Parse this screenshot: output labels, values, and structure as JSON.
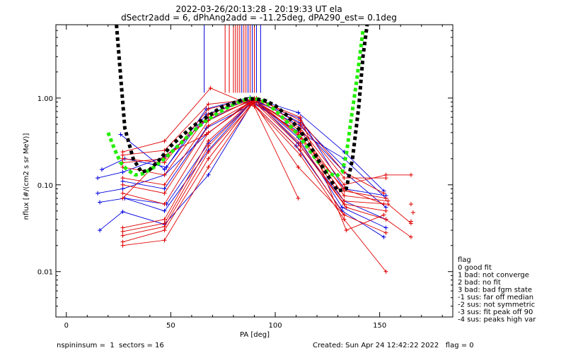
{
  "chart_data": {
    "type": "line",
    "title": "2022-03-26/20:13:28 - 20:19:33 UT ela",
    "subtitle": "dSectr2add = 6, dPhAng2add = -11.25deg, dPA290_est=   0.1deg",
    "xlabel": "PA [deg]",
    "ylabel": "nflux [#/(cm2 s sr MeV)]",
    "xlim": [
      -5,
      185
    ],
    "ylim": [
      0.003,
      7
    ],
    "yscale": "log",
    "xticks": [
      0,
      50,
      100,
      150
    ],
    "yticks": [
      0.01,
      0.1,
      1.0
    ],
    "ytick_labels": [
      "0.01",
      "0.10",
      "1.00"
    ],
    "grid": false,
    "colors": {
      "red": "#e00000",
      "blue": "#0000e0",
      "fit_black": "#000000",
      "fit_green": "#22ee00"
    },
    "blue_vlines_x": [
      66,
      84,
      87,
      89,
      91,
      93
    ],
    "red_vlines_x": [
      76,
      78,
      80,
      81,
      82,
      83,
      85,
      86,
      88,
      90
    ],
    "series": [
      {
        "color": "blue",
        "x": [
          15,
          27,
          47,
          67,
          88,
          112,
          133,
          153
        ],
        "y": [
          0.12,
          0.14,
          0.21,
          0.55,
          0.93,
          0.48,
          0.14,
          0.055
        ]
      },
      {
        "color": "blue",
        "x": [
          15,
          27,
          47,
          67,
          88,
          112,
          133,
          153
        ],
        "y": [
          0.08,
          0.09,
          0.13,
          0.38,
          0.92,
          0.4,
          0.2,
          0.07
        ]
      },
      {
        "color": "blue",
        "x": [
          16,
          28,
          47,
          68,
          90,
          111,
          133,
          153
        ],
        "y": [
          0.063,
          0.07,
          0.05,
          0.25,
          0.97,
          0.3,
          0.065,
          0.04
        ]
      },
      {
        "color": "blue",
        "x": [
          16,
          27,
          47,
          68,
          89,
          110,
          132,
          152
        ],
        "y": [
          0.03,
          0.049,
          0.035,
          0.13,
          0.88,
          0.28,
          0.05,
          0.025
        ]
      },
      {
        "color": "blue",
        "x": [
          17,
          28,
          48,
          67,
          88,
          111,
          133,
          152
        ],
        "y": [
          0.15,
          0.2,
          0.16,
          0.75,
          1.02,
          0.68,
          0.24,
          0.085
        ]
      },
      {
        "color": "blue",
        "x": [
          26,
          47,
          67,
          89,
          112,
          133
        ],
        "y": [
          0.38,
          0.15,
          0.65,
          0.98,
          0.52,
          0.16
        ]
      },
      {
        "color": "blue",
        "x": [
          27,
          47,
          67,
          91,
          112,
          133,
          153
        ],
        "y": [
          0.11,
          0.09,
          0.45,
          0.9,
          0.58,
          0.09,
          0.075
        ]
      },
      {
        "color": "blue",
        "x": [
          28,
          48,
          68,
          90,
          111,
          132,
          153
        ],
        "y": [
          0.07,
          0.06,
          0.3,
          0.95,
          0.35,
          0.055,
          0.032
        ]
      },
      {
        "color": "red",
        "x": [
          27,
          47,
          68,
          89,
          112,
          133,
          153
        ],
        "y": [
          0.02,
          0.023,
          0.16,
          0.86,
          0.22,
          0.04,
          0.01
        ]
      },
      {
        "color": "red",
        "x": [
          27,
          47,
          68,
          89,
          112,
          133,
          153
        ],
        "y": [
          0.022,
          0.03,
          0.2,
          0.88,
          0.25,
          0.045,
          0.028
        ]
      },
      {
        "color": "red",
        "x": [
          27,
          47,
          68,
          90,
          112,
          134,
          153,
          165
        ],
        "y": [
          0.026,
          0.033,
          0.24,
          0.9,
          0.28,
          0.055,
          0.04,
          0.025
        ]
      },
      {
        "color": "red",
        "x": [
          27,
          47,
          68,
          90,
          112,
          133,
          153
        ],
        "y": [
          0.029,
          0.036,
          0.28,
          0.95,
          0.3,
          0.06,
          0.05
        ]
      },
      {
        "color": "red",
        "x": [
          27,
          47,
          68,
          90,
          112,
          133,
          154,
          165
        ],
        "y": [
          0.032,
          0.04,
          0.32,
          0.97,
          0.35,
          0.065,
          0.06,
          0.036
        ]
      },
      {
        "color": "red",
        "x": [
          27,
          47,
          68,
          89,
          111,
          133,
          154
        ],
        "y": [
          0.08,
          0.06,
          0.4,
          0.92,
          0.4,
          0.075,
          0.065
        ]
      },
      {
        "color": "red",
        "x": [
          27,
          47,
          68,
          90,
          112,
          133,
          153
        ],
        "y": [
          0.1,
          0.08,
          0.48,
          0.95,
          0.42,
          0.085,
          0.07
        ]
      },
      {
        "color": "red",
        "x": [
          27,
          47,
          68,
          89,
          112,
          133,
          153,
          165
        ],
        "y": [
          0.12,
          0.1,
          0.55,
          0.97,
          0.45,
          0.1,
          0.13,
          0.13
        ]
      },
      {
        "color": "red",
        "x": [
          27,
          47,
          68,
          90,
          112,
          133,
          153
        ],
        "y": [
          0.16,
          0.13,
          0.65,
          0.98,
          0.5,
          0.12,
          0.12
        ]
      },
      {
        "color": "red",
        "x": [
          27,
          47,
          68,
          91,
          112,
          133,
          152
        ],
        "y": [
          0.2,
          0.18,
          0.75,
          1.0,
          0.55,
          0.14,
          0.08
        ]
      },
      {
        "color": "red",
        "x": [
          27,
          47,
          68,
          90,
          111,
          133,
          152
        ],
        "y": [
          0.22,
          0.25,
          0.85,
          0.97,
          0.38,
          0.09,
          0.06
        ]
      },
      {
        "color": "red",
        "x": [
          27,
          47,
          69,
          90,
          111
        ],
        "y": [
          0.24,
          0.32,
          1.3,
          0.8,
          0.07
        ]
      },
      {
        "color": "red",
        "x": [
          27,
          47,
          68,
          89,
          111,
          133
        ],
        "y": [
          0.18,
          0.2,
          0.6,
          0.93,
          0.16,
          0.045
        ]
      },
      {
        "color": "red",
        "x": [
          27,
          47,
          67,
          90,
          112,
          134,
          152
        ],
        "y": [
          0.07,
          0.22,
          0.38,
          0.99,
          0.6,
          0.03,
          0.045
        ]
      }
    ],
    "red_isolated_points": {
      "x": [
        165,
        166,
        165
      ],
      "y": [
        0.06,
        0.048,
        0.038
      ]
    },
    "fit_black": {
      "x": [
        24,
        28,
        32,
        36,
        40,
        45,
        50,
        56,
        62,
        68,
        74,
        80,
        85,
        90,
        95,
        100,
        106,
        112,
        118,
        124,
        130,
        134,
        137,
        140,
        142,
        144
      ],
      "y": [
        7,
        0.45,
        0.2,
        0.14,
        0.15,
        0.2,
        0.28,
        0.38,
        0.5,
        0.62,
        0.78,
        0.88,
        0.97,
        0.98,
        0.94,
        0.82,
        0.62,
        0.42,
        0.25,
        0.14,
        0.085,
        0.09,
        0.2,
        0.8,
        3.0,
        7
      ]
    },
    "fit_green": {
      "x": [
        20,
        23,
        26,
        29,
        33,
        37,
        42,
        48,
        54,
        60,
        66,
        72,
        78,
        84,
        88,
        92,
        96,
        100,
        105,
        110,
        115,
        120,
        125,
        129,
        132,
        134,
        136,
        139,
        142
      ],
      "y": [
        0.4,
        0.26,
        0.18,
        0.15,
        0.13,
        0.135,
        0.16,
        0.21,
        0.29,
        0.4,
        0.53,
        0.66,
        0.8,
        0.93,
        0.99,
        0.97,
        0.88,
        0.72,
        0.55,
        0.4,
        0.28,
        0.19,
        0.14,
        0.125,
        0.14,
        0.22,
        0.5,
        1.6,
        6
      ]
    },
    "legend": {
      "title": "flag",
      "entries": [
        " 0 good fit",
        " 1 bad: not converge",
        " 2 bad: no fit",
        " 3 bad: bad fgm state",
        "-1 sus: far off median",
        "-2 sus: not symmetric",
        "-3 sus: fit peak off 90",
        "-4 sus: peaks high var"
      ]
    },
    "footer": {
      "left": "nspininsum =  1  sectors = 16",
      "right": "Created: Sun Apr 24 12:42:22 2022   flag = 0"
    }
  }
}
